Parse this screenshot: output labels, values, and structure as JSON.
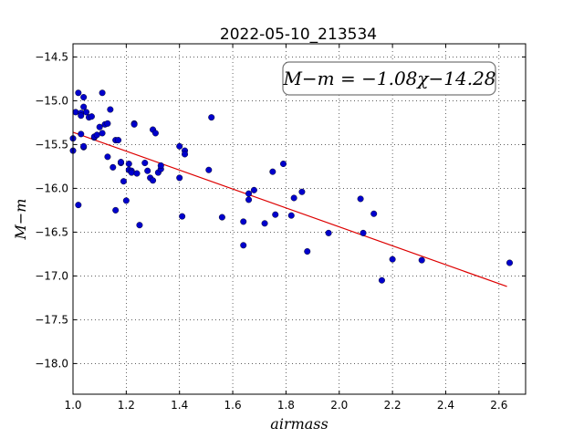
{
  "chart_data": {
    "type": "scatter",
    "title": "2022-05-10_213534",
    "xlabel": "airmass",
    "ylabel": "M−m",
    "xlim": [
      1.0,
      2.7
    ],
    "ylim": [
      -18.35,
      -14.35
    ],
    "xticks": [
      1.0,
      1.2,
      1.4,
      1.6,
      1.8,
      2.0,
      2.2,
      2.4,
      2.6
    ],
    "xtick_labels": [
      "1.0",
      "1.2",
      "1.4",
      "1.6",
      "1.8",
      "2.0",
      "2.2",
      "2.4",
      "2.6"
    ],
    "yticks": [
      -14.5,
      -15.0,
      -15.5,
      -16.0,
      -16.5,
      -17.0,
      -17.5,
      -18.0
    ],
    "ytick_labels": [
      "−14.5",
      "−15.0",
      "−15.5",
      "−16.0",
      "−16.5",
      "−17.0",
      "−17.5",
      "−18.0"
    ],
    "grid": true,
    "annotation": "M−m = −1.08χ−14.28",
    "annotation_position": "top-right",
    "fit": {
      "slope": -1.08,
      "intercept": -14.28,
      "x_range": [
        1.0,
        2.63
      ],
      "color": "#dd0000"
    },
    "points_color": "#0000cc",
    "x": [
      1.0,
      1.0,
      1.01,
      1.02,
      1.02,
      1.03,
      1.03,
      1.03,
      1.04,
      1.04,
      1.04,
      1.04,
      1.05,
      1.06,
      1.07,
      1.08,
      1.08,
      1.09,
      1.1,
      1.11,
      1.11,
      1.12,
      1.13,
      1.13,
      1.14,
      1.15,
      1.16,
      1.16,
      1.17,
      1.18,
      1.18,
      1.19,
      1.2,
      1.21,
      1.21,
      1.22,
      1.22,
      1.23,
      1.23,
      1.24,
      1.25,
      1.27,
      1.28,
      1.29,
      1.3,
      1.3,
      1.31,
      1.32,
      1.33,
      1.33,
      1.4,
      1.4,
      1.41,
      1.42,
      1.42,
      1.51,
      1.52,
      1.56,
      1.64,
      1.64,
      1.66,
      1.66,
      1.68,
      1.72,
      1.75,
      1.76,
      1.79,
      1.82,
      1.83,
      1.86,
      1.88,
      1.96,
      2.08,
      2.09,
      2.13,
      2.16,
      2.2,
      2.31,
      2.64
    ],
    "y": [
      -15.57,
      -15.43,
      -15.13,
      -16.19,
      -14.91,
      -15.38,
      -15.14,
      -15.17,
      -15.53,
      -15.52,
      -15.07,
      -14.96,
      -15.13,
      -15.19,
      -15.18,
      -15.42,
      -15.41,
      -15.39,
      -15.3,
      -15.37,
      -14.91,
      -15.27,
      -15.64,
      -15.26,
      -15.1,
      -15.76,
      -16.25,
      -15.45,
      -15.45,
      -15.71,
      -15.7,
      -15.92,
      -16.14,
      -15.72,
      -15.79,
      -15.8,
      -15.82,
      -15.26,
      -15.27,
      -15.83,
      -16.42,
      -15.71,
      -15.8,
      -15.88,
      -15.33,
      -15.91,
      -15.37,
      -15.82,
      -15.78,
      -15.74,
      -15.52,
      -15.88,
      -16.32,
      -15.57,
      -15.61,
      -15.79,
      -15.19,
      -16.33,
      -16.65,
      -16.38,
      -16.06,
      -16.13,
      -16.02,
      -16.4,
      -15.81,
      -16.3,
      -15.72,
      -16.31,
      -16.11,
      -16.04,
      -16.72,
      -16.51,
      -16.12,
      -16.51,
      -16.29,
      -17.05,
      -16.81,
      -16.82,
      -16.85
    ]
  }
}
